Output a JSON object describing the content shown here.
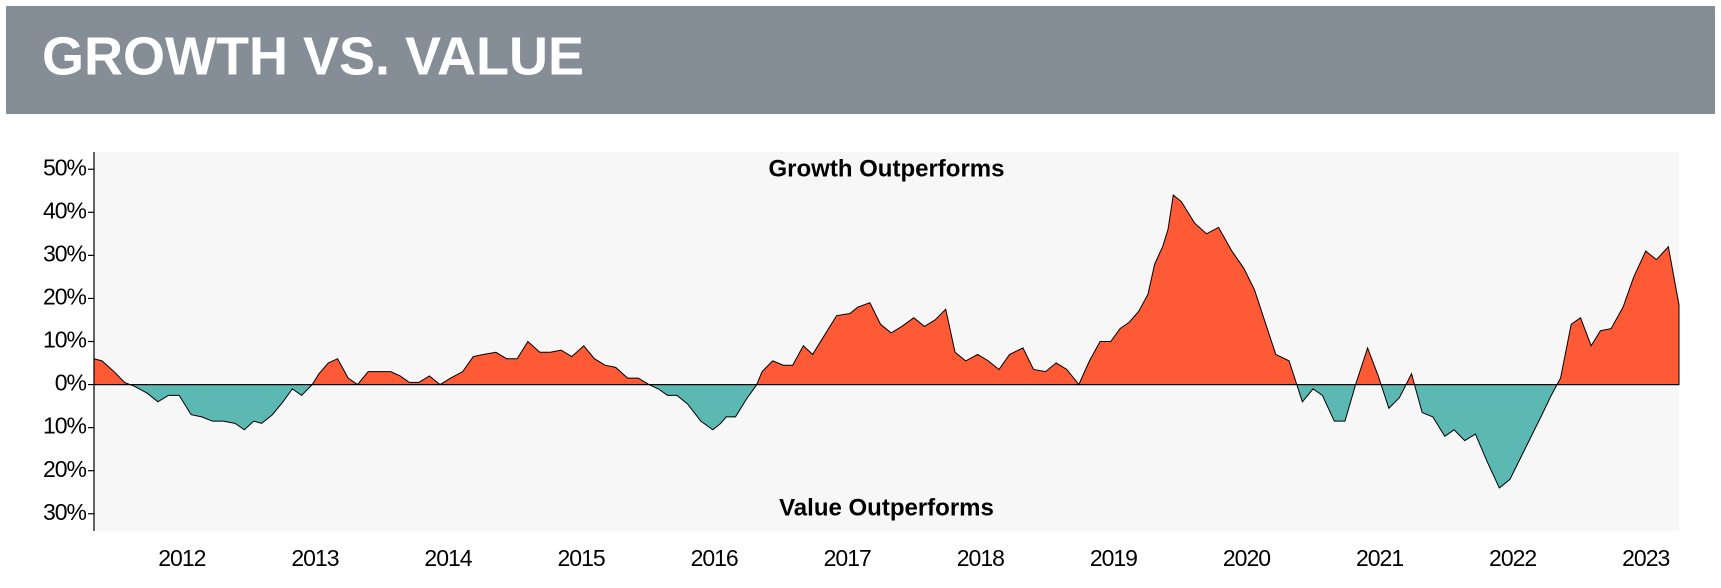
{
  "chart_data": {
    "type": "area",
    "title": "GROWTH VS. VALUE",
    "annotations": [
      "Growth Outperforms",
      "Value Outperforms"
    ],
    "positive_color": "#ff5a36",
    "negative_color": "#5bb8b2",
    "x": [
      2011.34,
      2011.4,
      2011.49,
      2011.57,
      2011.65,
      2011.74,
      2011.82,
      2011.9,
      2011.98,
      2012.07,
      2012.15,
      2012.23,
      2012.31,
      2012.4,
      2012.47,
      2012.54,
      2012.6,
      2012.68,
      2012.76,
      2012.83,
      2012.9,
      2012.98,
      2013.03,
      2013.1,
      2013.17,
      2013.25,
      2013.32,
      2013.4,
      2013.49,
      2013.57,
      2013.64,
      2013.71,
      2013.78,
      2013.86,
      2013.94,
      2014.02,
      2014.11,
      2014.19,
      2014.27,
      2014.36,
      2014.44,
      2014.52,
      2014.6,
      2014.69,
      2014.77,
      2014.85,
      2014.93,
      2015.02,
      2015.1,
      2015.18,
      2015.26,
      2015.35,
      2015.43,
      2015.51,
      2015.58,
      2015.65,
      2015.72,
      2015.8,
      2015.9,
      2015.99,
      2016.05,
      2016.09,
      2016.16,
      2016.24,
      2016.32,
      2016.36,
      2016.44,
      2016.52,
      2016.59,
      2016.67,
      2016.74,
      2016.82,
      2016.92,
      2017.02,
      2017.08,
      2017.17,
      2017.25,
      2017.33,
      2017.41,
      2017.5,
      2017.58,
      2017.66,
      2017.74,
      2017.81,
      2017.89,
      2017.98,
      2018.06,
      2018.14,
      2018.22,
      2018.32,
      2018.4,
      2018.49,
      2018.57,
      2018.65,
      2018.74,
      2018.82,
      2018.9,
      2018.98,
      2019.05,
      2019.12,
      2019.19,
      2019.26,
      2019.31,
      2019.37,
      2019.41,
      2019.45,
      2019.51,
      2019.61,
      2019.7,
      2019.79,
      2019.89,
      2019.98,
      2020.06,
      2020.22,
      2020.32,
      2020.42,
      2020.5,
      2020.57,
      2020.66,
      2020.74,
      2020.82,
      2020.91,
      2020.99,
      2021.07,
      2021.15,
      2021.24,
      2021.32,
      2021.4,
      2021.49,
      2021.56,
      2021.64,
      2021.72,
      2021.81,
      2021.9,
      2021.98,
      2022.06,
      2022.14,
      2022.22,
      2022.29,
      2022.36,
      2022.44,
      2022.51,
      2022.59,
      2022.66,
      2022.74,
      2022.83,
      2022.91,
      2023.0,
      2023.08,
      2023.17,
      2023.25
    ],
    "values": [
      6,
      5.5,
      3,
      0.5,
      -0.5,
      -2,
      -4,
      -2.5,
      -2.5,
      -7,
      -7.5,
      -8.5,
      -8.5,
      -9,
      -10.5,
      -8.5,
      -9,
      -7,
      -4,
      -1,
      -2.5,
      0,
      2.5,
      5,
      6,
      1.5,
      0,
      3,
      3,
      3,
      2,
      0.5,
      0.5,
      2,
      0,
      1.5,
      3,
      6.5,
      7,
      7.5,
      6,
      6,
      10,
      7.5,
      7.5,
      8,
      6.5,
      9,
      6,
      4.5,
      4,
      1.5,
      1.5,
      0,
      -1,
      -2.5,
      -2.5,
      -4.5,
      -8.5,
      -10.5,
      -9,
      -7.5,
      -7.5,
      -3.5,
      0,
      3,
      5.5,
      4.5,
      4.5,
      9,
      7,
      11,
      16,
      16.5,
      18,
      19,
      14,
      12,
      13.5,
      15.5,
      13.5,
      15,
      17.5,
      7.5,
      5.5,
      7,
      5.5,
      3.5,
      7,
      8.5,
      3.5,
      3,
      5,
      3.5,
      0,
      5.5,
      10,
      10,
      13,
      14.5,
      17,
      21,
      28,
      32,
      36,
      44,
      42.5,
      37.5,
      35,
      36.5,
      31,
      27,
      22,
      7,
      5.5,
      -4,
      -1,
      -2.5,
      -8.5,
      -8.5,
      0,
      8.5,
      2,
      -5.5,
      -3,
      2.5,
      -6.5,
      -7.5,
      -12,
      -10.5,
      -13,
      -11.5,
      -18,
      -24,
      -22,
      -17,
      -12,
      -7,
      -2.5,
      1.5,
      14,
      15.5,
      9,
      12.5,
      13,
      18,
      25,
      31,
      29,
      32,
      18.5
    ],
    "xlim": [
      2011.34,
      2023.25
    ],
    "xticks": [
      2012,
      2013,
      2014,
      2015,
      2016,
      2017,
      2018,
      2019,
      2020,
      2021,
      2022,
      2023
    ],
    "ylim": [
      -34,
      54
    ],
    "yticks": [
      {
        "value": 50,
        "label": "50%"
      },
      {
        "value": 40,
        "label": "40%"
      },
      {
        "value": 30,
        "label": "30%"
      },
      {
        "value": 20,
        "label": "20%"
      },
      {
        "value": 10,
        "label": "10%"
      },
      {
        "value": 0,
        "label": "0%"
      },
      {
        "value": -10,
        "label": "10%"
      },
      {
        "value": -20,
        "label": "20%"
      },
      {
        "value": -30,
        "label": "30%"
      }
    ],
    "grid": false
  }
}
